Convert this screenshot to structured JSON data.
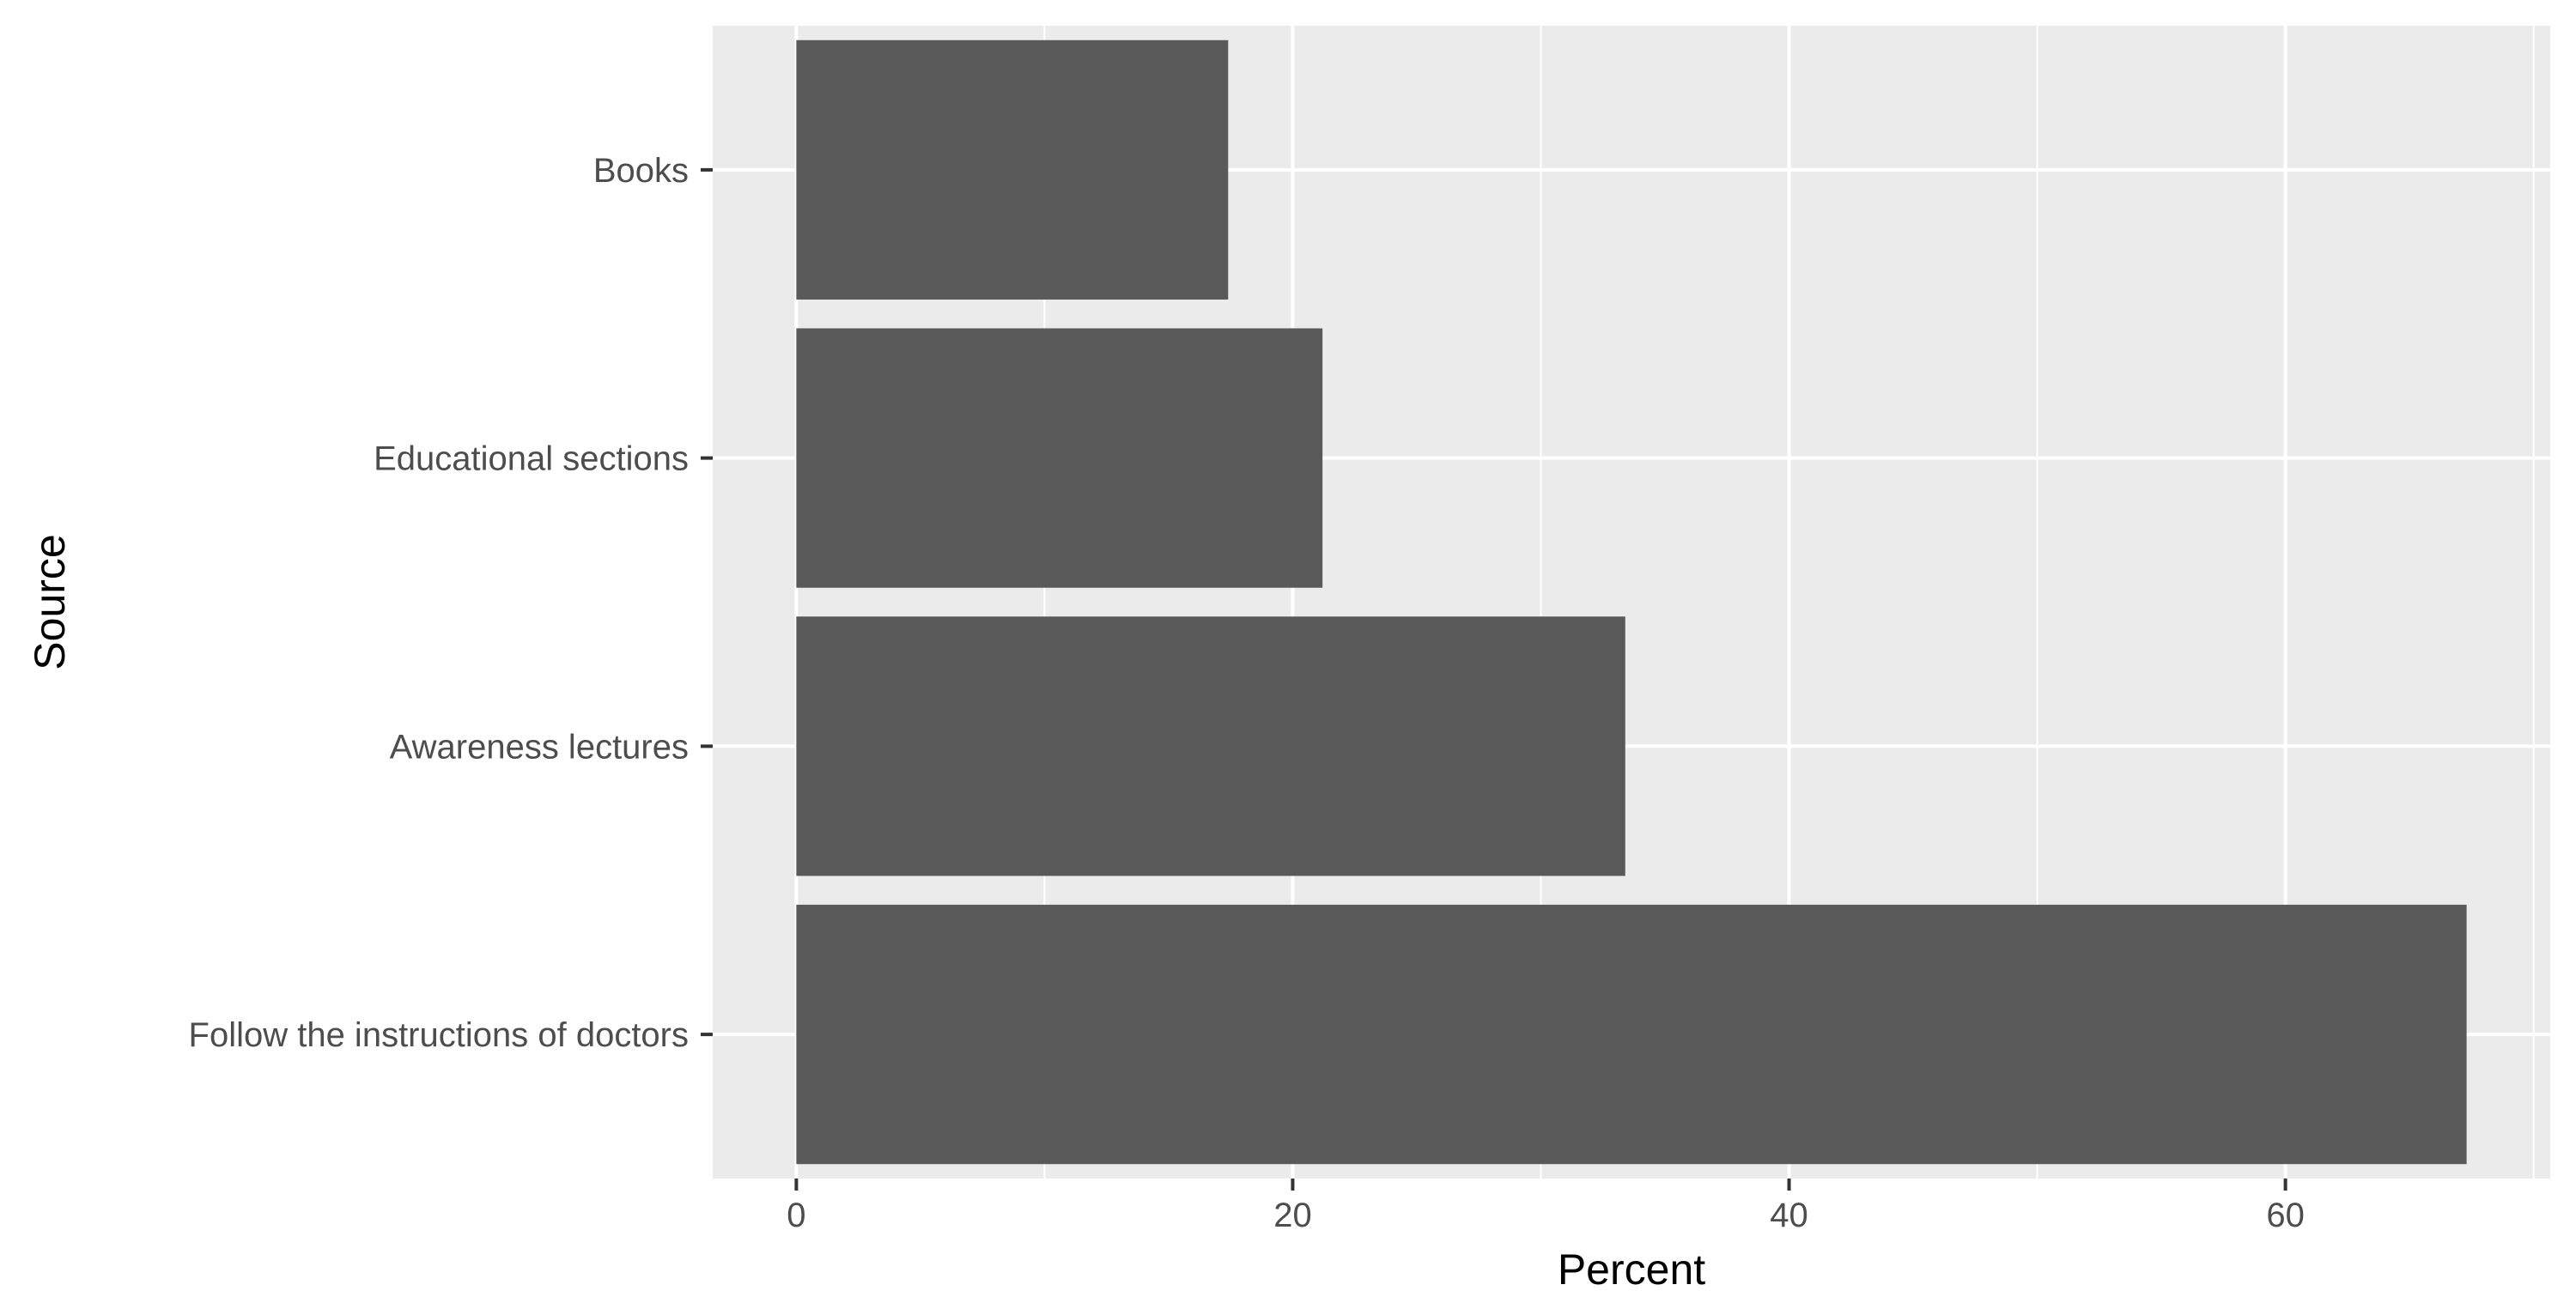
{
  "chart_data": {
    "type": "bar",
    "orientation": "horizontal",
    "categories": [
      "Follow the instructions of doctors",
      "Awareness lectures",
      "Educational sections",
      "Books"
    ],
    "values": [
      67.3,
      33.4,
      21.2,
      17.4
    ],
    "xlabel": "Percent",
    "ylabel": "Source",
    "xlim": [
      -3.37,
      70.67
    ],
    "x_ticks": [
      0,
      20,
      40,
      60
    ],
    "x_tick_labels": [
      "0",
      "20",
      "40",
      "60"
    ],
    "x_minor_ticks": [
      10,
      30,
      50,
      70
    ],
    "grid": true,
    "legend": "none",
    "colors": {
      "panel_background": "#ebebeb",
      "grid_line": "#ffffff",
      "bar_fill": "#595959",
      "tick_mark": "#333333"
    }
  }
}
